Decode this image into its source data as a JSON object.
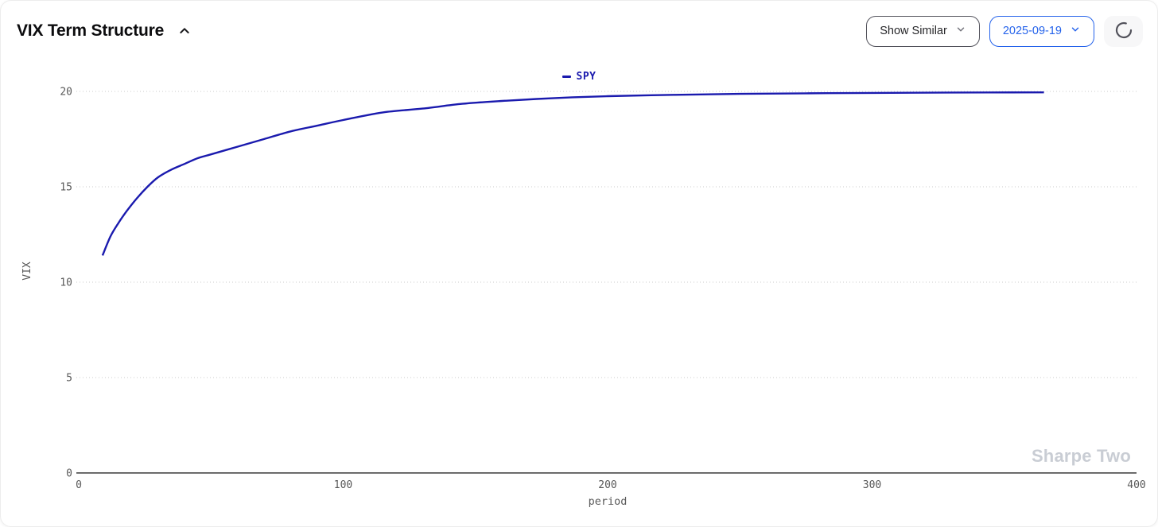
{
  "header": {
    "title": "VIX Term Structure"
  },
  "toolbar": {
    "show_similar_label": "Show Similar",
    "date_value": "2025-09-19"
  },
  "icons": {
    "collapse": "chevron-up",
    "dropdown": "chevron-down",
    "loading": "loader-circle"
  },
  "colors": {
    "accent": "#2563eb",
    "line": "#1a1aae",
    "grid": "#cbcbcb",
    "axis": "#3a3a3a",
    "tick_text": "#595959",
    "watermark": "#c9cdd4"
  },
  "watermark": "Sharpe Two",
  "chart_data": {
    "type": "line",
    "title": "",
    "xlabel": "period",
    "ylabel": "VIX",
    "xlim": [
      0,
      400
    ],
    "ylim": [
      0,
      20
    ],
    "xticks": [
      0,
      100,
      200,
      300,
      400
    ],
    "yticks": [
      0,
      5,
      10,
      15,
      20
    ],
    "grid": "horizontal-dotted",
    "legend_position": "top-center",
    "series": [
      {
        "name": "SPY",
        "color": "#1a1aae",
        "x": [
          9,
          12,
          15,
          18,
          22,
          26,
          30,
          35,
          40,
          45,
          50,
          60,
          70,
          80,
          90,
          100,
          115,
          130,
          145,
          160,
          180,
          200,
          225,
          250,
          275,
          300,
          330,
          365
        ],
        "y": [
          11.4,
          12.4,
          13.1,
          13.7,
          14.4,
          15.0,
          15.5,
          15.9,
          16.2,
          16.5,
          16.7,
          17.1,
          17.5,
          17.9,
          18.2,
          18.5,
          18.9,
          19.1,
          19.35,
          19.5,
          19.65,
          19.75,
          19.82,
          19.87,
          19.9,
          19.92,
          19.94,
          19.95
        ]
      }
    ]
  }
}
